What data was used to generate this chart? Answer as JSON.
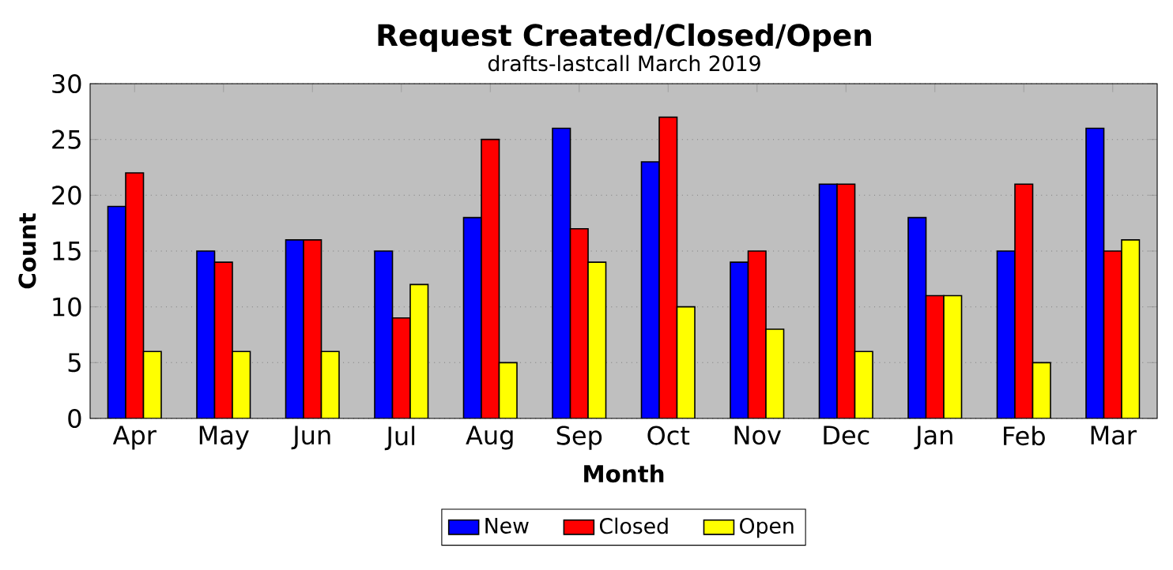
{
  "chart_data": {
    "type": "bar",
    "title": "Request Created/Closed/Open",
    "subtitle": "drafts-lastcall March 2019",
    "xlabel": "Month",
    "ylabel": "Count",
    "categories": [
      "Apr",
      "May",
      "Jun",
      "Jul",
      "Aug",
      "Sep",
      "Oct",
      "Nov",
      "Dec",
      "Jan",
      "Feb",
      "Mar"
    ],
    "series": [
      {
        "name": "New",
        "color": "#0000ff",
        "values": [
          19,
          15,
          16,
          15,
          18,
          26,
          23,
          14,
          21,
          18,
          15,
          26
        ]
      },
      {
        "name": "Closed",
        "color": "#ff0000",
        "values": [
          22,
          14,
          16,
          9,
          25,
          17,
          27,
          15,
          21,
          11,
          21,
          15
        ]
      },
      {
        "name": "Open",
        "color": "#ffff00",
        "values": [
          6,
          6,
          6,
          12,
          5,
          14,
          10,
          8,
          6,
          11,
          5,
          16
        ]
      }
    ],
    "ylim": [
      0,
      30
    ],
    "yticks": [
      0,
      5,
      10,
      15,
      20,
      25,
      30
    ],
    "grid": "y",
    "legend": "bottom"
  }
}
